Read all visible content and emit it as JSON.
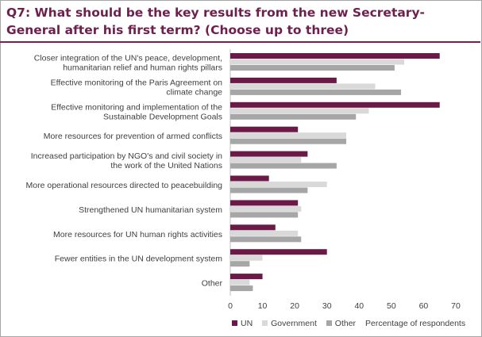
{
  "title": "Q7: What should be the key results from the new Secretary-General after his first term? (Choose up to three)",
  "colors": {
    "UN": "#6b1a47",
    "Government": "#d9d9d9",
    "Other": "#a6a6a6",
    "title": "#6e1f4d"
  },
  "chart_data": {
    "type": "bar",
    "orientation": "horizontal",
    "categories": [
      [
        "Closer integration of the UN's peace, development,",
        "humanitarian relief and human rights pillars"
      ],
      [
        "Effective monitoring of the Paris Agreement on",
        "climate change"
      ],
      [
        "Effective monitoring and implementation of the",
        "Sustainable Development Goals"
      ],
      [
        "More resources for prevention of armed conflicts"
      ],
      [
        "Increased participation by NGO's and civil society in",
        "the work of the United Nations"
      ],
      [
        "More operational resources directed to peacebuilding"
      ],
      [
        "Strengthened UN humanitarian system"
      ],
      [
        "More resources for UN human rights activities"
      ],
      [
        "Fewer entities in the UN development system"
      ],
      [
        "Other"
      ]
    ],
    "series": [
      {
        "name": "UN",
        "values": [
          65,
          33,
          65,
          21,
          24,
          12,
          21,
          14,
          30,
          10
        ]
      },
      {
        "name": "Government",
        "values": [
          54,
          45,
          43,
          36,
          22,
          30,
          22,
          21,
          10,
          6
        ]
      },
      {
        "name": "Other",
        "values": [
          51,
          53,
          39,
          36,
          33,
          24,
          21,
          22,
          6,
          7
        ]
      }
    ],
    "xlim": [
      0,
      70
    ],
    "xticks": [
      0,
      10,
      20,
      30,
      40,
      50,
      60,
      70
    ],
    "xlabel": "Percentage of respondents",
    "legend_position": "bottom",
    "grid": false
  }
}
